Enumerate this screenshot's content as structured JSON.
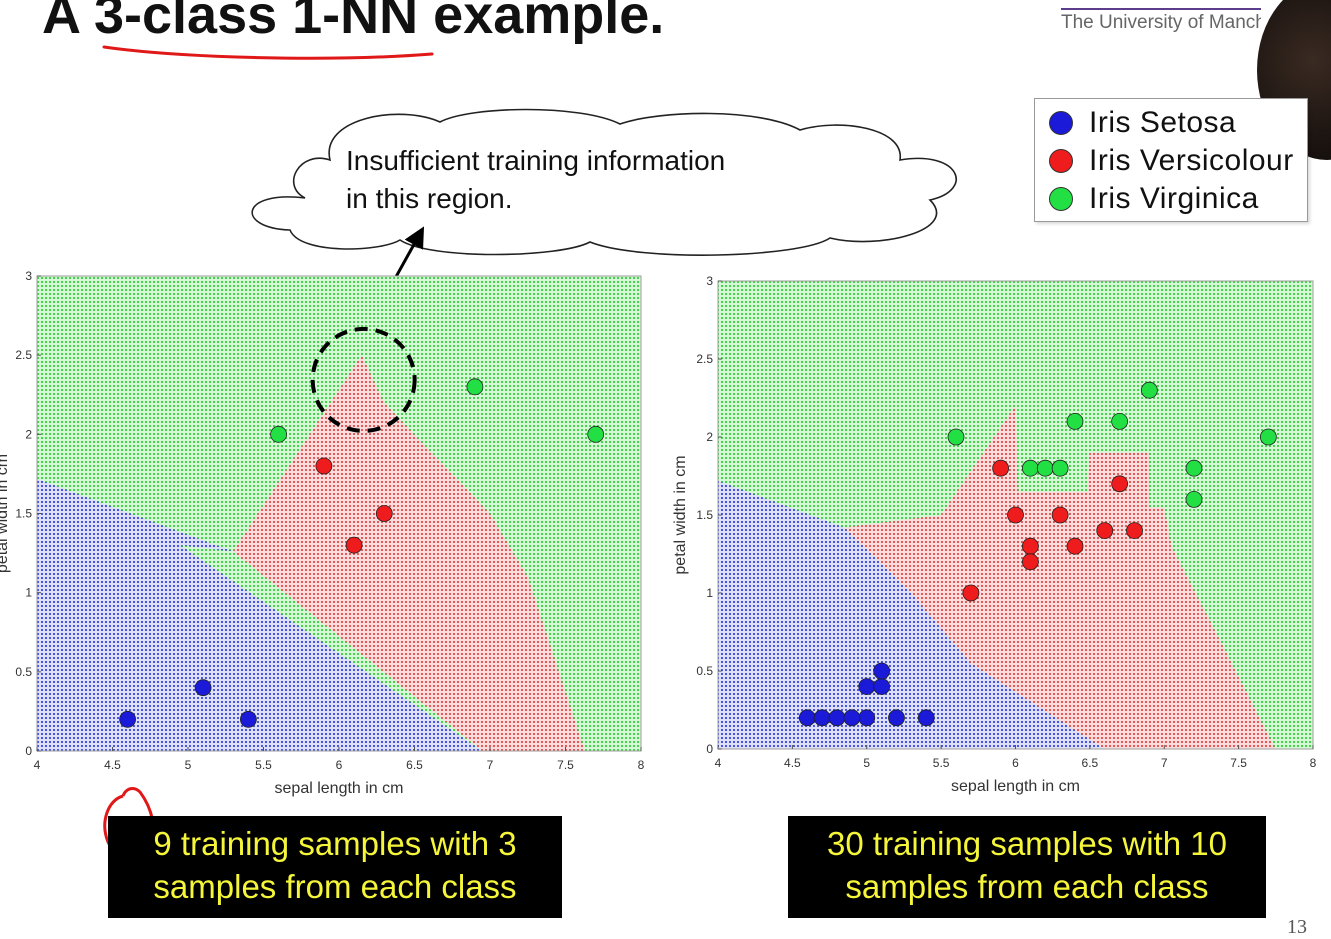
{
  "slide": {
    "title": "A 3-class 1-NN example.",
    "university": "The University of Manchester",
    "page_number": "13",
    "callout": {
      "line1": "Insufficient training information",
      "line2": "in this region."
    },
    "legend": [
      {
        "label": "Iris Setosa",
        "color": "#1a1ad8"
      },
      {
        "label": "Iris Versicolour",
        "color": "#ee1c1c"
      },
      {
        "label": "Iris Virginica",
        "color": "#22e043"
      }
    ],
    "captions": {
      "left": {
        "line1": "9 training samples with 3",
        "line2": "samples from each class"
      },
      "right": {
        "line1": "30 training samples with 10",
        "line2": "samples from each class"
      }
    },
    "colors": {
      "region_setosa": "#c8cdf3",
      "region_versicolour": "#f6cccc",
      "region_virginica": "#c8f3c8",
      "dot_setosa": "#1a1ad8",
      "dot_versicolour": "#ee1c1c",
      "dot_virginica": "#22e043",
      "annotation_red": "#e01818"
    }
  },
  "chart_data": [
    {
      "type": "scatter",
      "xlabel": "sepal length in cm",
      "ylabel": "petal width in cm",
      "xlim": [
        4,
        8
      ],
      "ylim": [
        0,
        3
      ],
      "xticks": [
        "4",
        "4.5",
        "5",
        "5.5",
        "6",
        "6.5",
        "7",
        "7.5",
        "8"
      ],
      "yticks": [
        "0",
        "0.5",
        "1",
        "1.5",
        "2",
        "2.5",
        "3"
      ],
      "series": [
        {
          "name": "Iris Setosa",
          "points": [
            [
              4.6,
              0.2
            ],
            [
              5.1,
              0.4
            ],
            [
              5.4,
              0.2
            ]
          ]
        },
        {
          "name": "Iris Versicolour",
          "points": [
            [
              5.9,
              1.8
            ],
            [
              6.3,
              1.5
            ],
            [
              6.1,
              1.3
            ]
          ]
        },
        {
          "name": "Iris Virginica",
          "points": [
            [
              5.6,
              2.0
            ],
            [
              6.9,
              2.3
            ],
            [
              7.7,
              2.0
            ]
          ]
        }
      ],
      "regions": {
        "setosa": [
          [
            4,
            0
          ],
          [
            6.95,
            0
          ],
          [
            4.95,
            1.3
          ],
          [
            5.3,
            1.26
          ],
          [
            4,
            1.72
          ]
        ],
        "versicolour": [
          [
            5.3,
            1.26
          ],
          [
            6.15,
            2.5
          ],
          [
            6.3,
            2.2
          ],
          [
            7,
            1.5
          ],
          [
            7.25,
            1.1
          ],
          [
            7.63,
            0
          ],
          [
            6.95,
            0
          ]
        ]
      },
      "annotation": {
        "circle_center": [
          6.15,
          2.35
        ],
        "arrow_tip_data": [
          6.15,
          2.5
        ]
      }
    },
    {
      "type": "scatter",
      "xlabel": "sepal length in cm",
      "ylabel": "petal width in cm",
      "xlim": [
        4,
        8
      ],
      "ylim": [
        0,
        3
      ],
      "xticks": [
        "4",
        "4.5",
        "5",
        "5.5",
        "6",
        "6.5",
        "7",
        "7.5",
        "8"
      ],
      "yticks": [
        "0",
        "0.5",
        "1",
        "1.5",
        "2",
        "2.5",
        "3"
      ],
      "series": [
        {
          "name": "Iris Setosa",
          "points": [
            [
              4.6,
              0.2
            ],
            [
              4.7,
              0.2
            ],
            [
              4.8,
              0.2
            ],
            [
              5.0,
              0.2
            ],
            [
              5.0,
              0.4
            ],
            [
              5.1,
              0.4
            ],
            [
              5.1,
              0.5
            ],
            [
              5.2,
              0.2
            ],
            [
              5.4,
              0.2
            ],
            [
              4.9,
              0.2
            ]
          ]
        },
        {
          "name": "Iris Versicolour",
          "points": [
            [
              5.7,
              1.0
            ],
            [
              5.9,
              1.8
            ],
            [
              6.0,
              1.5
            ],
            [
              6.1,
              1.3
            ],
            [
              6.1,
              1.2
            ],
            [
              6.3,
              1.5
            ],
            [
              6.4,
              1.3
            ],
            [
              6.6,
              1.4
            ],
            [
              6.7,
              1.7
            ],
            [
              6.8,
              1.4
            ]
          ]
        },
        {
          "name": "Iris Virginica",
          "points": [
            [
              5.6,
              2.0
            ],
            [
              6.1,
              1.8
            ],
            [
              6.2,
              1.8
            ],
            [
              6.3,
              1.8
            ],
            [
              6.4,
              2.1
            ],
            [
              6.7,
              2.1
            ],
            [
              6.9,
              2.3
            ],
            [
              7.2,
              1.8
            ],
            [
              7.2,
              1.6
            ],
            [
              7.7,
              2.0
            ]
          ]
        }
      ],
      "regions": {
        "setosa": [
          [
            4,
            0
          ],
          [
            6.6,
            0
          ],
          [
            5.7,
            0.55
          ],
          [
            5.3,
            1.0
          ],
          [
            4.85,
            1.42
          ],
          [
            4,
            1.72
          ]
        ],
        "versicolour": [
          [
            4.85,
            1.42
          ],
          [
            5.5,
            1.5
          ],
          [
            6.0,
            2.2
          ],
          [
            6.02,
            1.65
          ],
          [
            6.48,
            1.65
          ],
          [
            6.5,
            1.9
          ],
          [
            6.9,
            1.9
          ],
          [
            6.9,
            1.55
          ],
          [
            7.0,
            1.55
          ],
          [
            7.05,
            1.3
          ],
          [
            7.75,
            0
          ],
          [
            6.6,
            0
          ],
          [
            5.7,
            0.55
          ],
          [
            5.3,
            1.0
          ]
        ]
      }
    }
  ]
}
